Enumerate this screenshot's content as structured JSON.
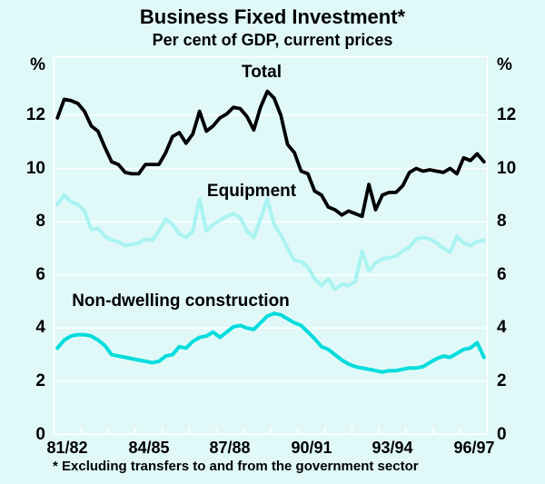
{
  "title": "Business Fixed Investment*",
  "subtitle": "Per cent of GDP, current prices",
  "footnote": "* Excluding transfers to and from the government sector",
  "axes": {
    "unit_left": "%",
    "unit_right": "%",
    "y_ticks": [
      12,
      10,
      8,
      6,
      4,
      2,
      0
    ],
    "x_ticks": [
      "81/82",
      "84/85",
      "87/88",
      "90/91",
      "93/94",
      "96/97"
    ],
    "x_tick_year_indices": [
      0,
      3,
      6,
      9,
      12,
      15
    ]
  },
  "colors": {
    "background": "#E0F9F8",
    "grid": "#FFFFFF",
    "text": "#000000",
    "total_line": "#000000",
    "equipment_line": "#A9F3F1",
    "non_dwelling_line": "#00DCDC"
  },
  "chart_data": {
    "type": "line",
    "title": "Business Fixed Investment*",
    "subtitle": "Per cent of GDP, current prices",
    "frequency": "quarterly",
    "x_range": [
      "81/82",
      "96/97"
    ],
    "years": 16,
    "ylim": [
      0,
      14.2
    ],
    "grid": true,
    "legend_position": "inline-labels",
    "series": [
      {
        "name": "Total",
        "color": "#000000",
        "values": [
          11.9,
          12.6,
          12.55,
          12.45,
          12.15,
          11.6,
          11.4,
          10.8,
          10.25,
          10.15,
          9.85,
          9.8,
          9.8,
          10.15,
          10.15,
          10.15,
          10.6,
          11.2,
          11.35,
          10.95,
          11.3,
          12.15,
          11.4,
          11.6,
          11.9,
          12.05,
          12.3,
          12.25,
          11.95,
          11.45,
          12.3,
          12.9,
          12.65,
          12.0,
          10.9,
          10.6,
          9.9,
          9.8,
          9.15,
          9.0,
          8.55,
          8.45,
          8.25,
          8.4,
          8.3,
          8.2,
          9.4,
          8.45,
          9.0,
          9.1,
          9.1,
          9.35,
          9.85,
          10.0,
          9.9,
          9.95,
          9.9,
          9.85,
          10.0,
          9.8,
          10.4,
          10.3,
          10.55,
          10.25
        ]
      },
      {
        "name": "Equipment",
        "color": "#A9F3F1",
        "values": [
          8.65,
          9.0,
          8.75,
          8.65,
          8.4,
          7.7,
          7.75,
          7.45,
          7.3,
          7.25,
          7.1,
          7.15,
          7.2,
          7.35,
          7.3,
          7.65,
          8.1,
          7.9,
          7.55,
          7.4,
          7.65,
          8.85,
          7.65,
          7.9,
          8.05,
          8.2,
          8.3,
          8.15,
          7.65,
          7.4,
          8.1,
          8.85,
          7.9,
          7.5,
          7.0,
          6.55,
          6.5,
          6.3,
          5.85,
          5.6,
          5.85,
          5.45,
          5.65,
          5.6,
          5.75,
          6.9,
          6.15,
          6.45,
          6.6,
          6.65,
          6.7,
          6.9,
          7.05,
          7.35,
          7.4,
          7.35,
          7.2,
          7.0,
          6.85,
          7.45,
          7.2,
          7.1,
          7.25,
          7.3
        ]
      },
      {
        "name": "Non-dwelling construction",
        "color": "#00DCDC",
        "values": [
          3.25,
          3.55,
          3.7,
          3.75,
          3.75,
          3.7,
          3.55,
          3.35,
          3.0,
          2.95,
          2.9,
          2.85,
          2.8,
          2.75,
          2.7,
          2.75,
          2.95,
          3.0,
          3.3,
          3.25,
          3.5,
          3.65,
          3.7,
          3.85,
          3.65,
          3.85,
          4.05,
          4.1,
          4.0,
          3.95,
          4.2,
          4.45,
          4.55,
          4.5,
          4.35,
          4.2,
          4.1,
          3.85,
          3.6,
          3.3,
          3.2,
          3.0,
          2.8,
          2.65,
          2.55,
          2.5,
          2.45,
          2.4,
          2.35,
          2.4,
          2.4,
          2.45,
          2.5,
          2.5,
          2.55,
          2.7,
          2.85,
          2.95,
          2.9,
          3.05,
          3.2,
          3.25,
          3.45,
          2.9
        ]
      }
    ]
  }
}
